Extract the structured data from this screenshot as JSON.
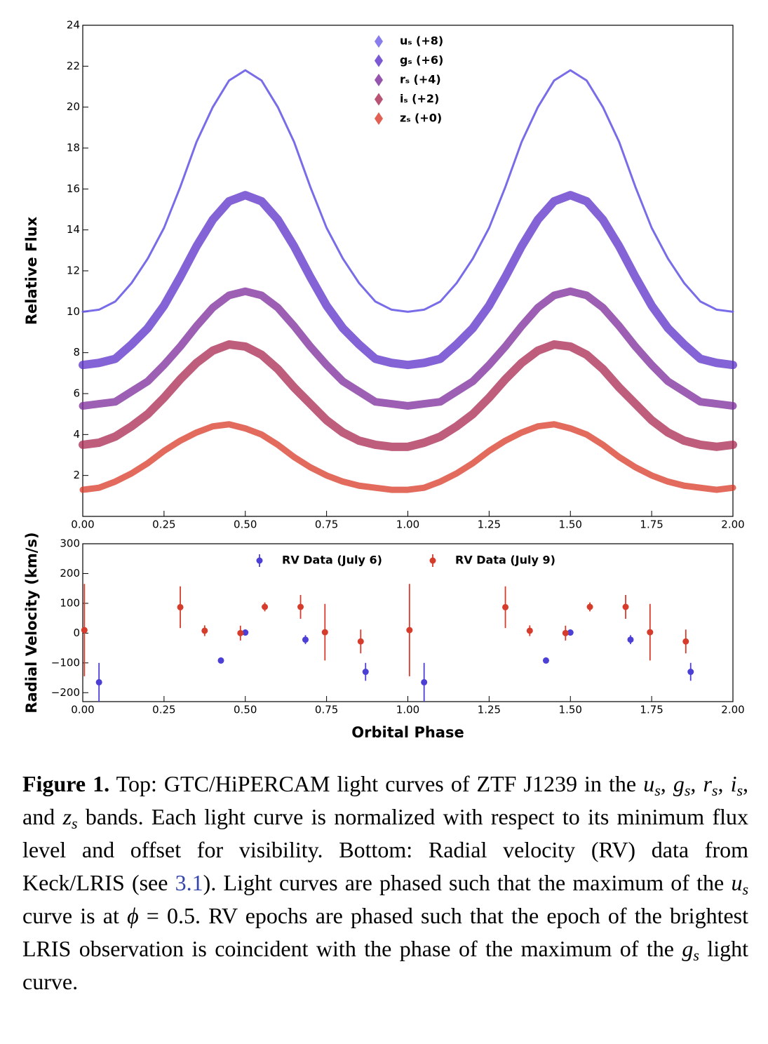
{
  "chart_data": [
    {
      "type": "line",
      "y_label": "Relative Flux",
      "legend": "upper center",
      "xlim": [
        0,
        2
      ],
      "ylim": [
        0,
        24
      ],
      "xticks": [
        {
          "value": 0,
          "label": "0.00"
        },
        {
          "value": 0.25,
          "label": "0.25"
        },
        {
          "value": 0.5,
          "label": "0.50"
        },
        {
          "value": 0.75,
          "label": "0.75"
        },
        {
          "value": 1,
          "label": "1.00"
        },
        {
          "value": 1.25,
          "label": "1.25"
        },
        {
          "value": 1.5,
          "label": "1.50"
        },
        {
          "value": 1.75,
          "label": "1.75"
        },
        {
          "value": 2,
          "label": "2.00"
        }
      ],
      "yticks": [
        2,
        4,
        6,
        8,
        10,
        12,
        14,
        16,
        18,
        20,
        22,
        24
      ],
      "x": [
        0,
        0.05,
        0.1,
        0.15,
        0.2,
        0.25,
        0.3,
        0.35,
        0.4,
        0.45,
        0.5,
        0.55,
        0.6,
        0.65,
        0.7,
        0.75,
        0.8,
        0.85,
        0.9,
        0.95,
        1,
        1.05,
        1.1,
        1.15,
        1.2,
        1.25,
        1.3,
        1.35,
        1.4,
        1.45,
        1.5,
        1.55,
        1.6,
        1.65,
        1.7,
        1.75,
        1.8,
        1.85,
        1.9,
        1.95,
        2
      ],
      "series": [
        {
          "name": "uₛ (+8)",
          "color": "#6a5ce6",
          "values": [
            10.0,
            10.1,
            10.5,
            11.4,
            12.6,
            14.1,
            16.1,
            18.3,
            20.0,
            21.3,
            21.8,
            21.3,
            20.0,
            18.3,
            16.1,
            14.1,
            12.6,
            11.4,
            10.5,
            10.1,
            10.0,
            10.1,
            10.5,
            11.4,
            12.6,
            14.1,
            16.1,
            18.3,
            20.0,
            21.3,
            21.8,
            21.3,
            20.0,
            18.3,
            16.1,
            14.1,
            12.6,
            11.4,
            10.5,
            10.1,
            10.0
          ]
        },
        {
          "name": "gₛ (+6)",
          "color": "#5a2fc8",
          "values": [
            7.4,
            7.5,
            7.7,
            8.4,
            9.2,
            10.3,
            11.7,
            13.2,
            14.5,
            15.4,
            15.7,
            15.4,
            14.5,
            13.2,
            11.7,
            10.3,
            9.2,
            8.4,
            7.7,
            7.5,
            7.4,
            7.5,
            7.7,
            8.4,
            9.2,
            10.3,
            11.7,
            13.2,
            14.5,
            15.4,
            15.7,
            15.4,
            14.5,
            13.2,
            11.7,
            10.3,
            9.2,
            8.4,
            7.7,
            7.5,
            7.4
          ]
        },
        {
          "name": "rₛ (+4)",
          "color": "#7b2a9a",
          "values": [
            5.4,
            5.5,
            5.6,
            6.1,
            6.6,
            7.4,
            8.3,
            9.3,
            10.2,
            10.8,
            11.0,
            10.8,
            10.2,
            9.3,
            8.3,
            7.4,
            6.6,
            6.1,
            5.6,
            5.5,
            5.4,
            5.5,
            5.6,
            6.1,
            6.6,
            7.4,
            8.3,
            9.3,
            10.2,
            10.8,
            11.0,
            10.8,
            10.2,
            9.3,
            8.3,
            7.4,
            6.6,
            6.1,
            5.6,
            5.5,
            5.4
          ]
        },
        {
          "name": "iₛ (+2)",
          "color": "#a82850",
          "values": [
            3.5,
            3.6,
            3.9,
            4.4,
            5.0,
            5.8,
            6.7,
            7.5,
            8.1,
            8.4,
            8.3,
            7.9,
            7.2,
            6.3,
            5.5,
            4.7,
            4.1,
            3.7,
            3.5,
            3.4,
            3.4,
            3.6,
            3.9,
            4.4,
            5.0,
            5.8,
            6.7,
            7.5,
            8.1,
            8.4,
            8.3,
            7.9,
            7.2,
            6.3,
            5.5,
            4.7,
            4.1,
            3.7,
            3.5,
            3.4,
            3.5
          ]
        },
        {
          "name": "zₛ (+0)",
          "color": "#d83a28",
          "values": [
            1.3,
            1.4,
            1.7,
            2.1,
            2.6,
            3.2,
            3.7,
            4.1,
            4.4,
            4.5,
            4.3,
            4.0,
            3.5,
            2.9,
            2.4,
            2.0,
            1.7,
            1.5,
            1.4,
            1.3,
            1.3,
            1.4,
            1.7,
            2.1,
            2.6,
            3.2,
            3.7,
            4.1,
            4.4,
            4.5,
            4.3,
            4.0,
            3.5,
            2.9,
            2.4,
            2.0,
            1.7,
            1.5,
            1.4,
            1.3,
            1.4
          ]
        }
      ]
    },
    {
      "type": "errorbar",
      "x_label": "Orbital Phase",
      "y_label": "Radial Velocity (km/s)",
      "legend": "upper center",
      "xlim": [
        0,
        2
      ],
      "ylim": [
        -230,
        300
      ],
      "xticks": [
        {
          "value": 0,
          "label": "0.00"
        },
        {
          "value": 0.25,
          "label": "0.25"
        },
        {
          "value": 0.5,
          "label": "0.50"
        },
        {
          "value": 0.75,
          "label": "0.75"
        },
        {
          "value": 1,
          "label": "1.00"
        },
        {
          "value": 1.25,
          "label": "1.25"
        },
        {
          "value": 1.5,
          "label": "1.50"
        },
        {
          "value": 1.75,
          "label": "1.75"
        },
        {
          "value": 2,
          "label": "2.00"
        }
      ],
      "yticks": [
        {
          "value": -200,
          "label": "−200"
        },
        {
          "value": -100,
          "label": "−100"
        },
        0,
        100,
        200,
        300
      ],
      "series": [
        {
          "name": "RV Data (July 6)",
          "color": "#4b3fd6",
          "x": [
            0.05,
            0.425,
            0.5,
            0.685,
            0.87,
            1.05,
            1.425,
            1.5,
            1.685,
            1.87
          ],
          "values": [
            -165,
            -92,
            2,
            -22,
            -130,
            -165,
            -92,
            2,
            -22,
            -130
          ],
          "errors": [
            65,
            10,
            10,
            15,
            30,
            65,
            10,
            10,
            15,
            30
          ]
        },
        {
          "name": "RV Data (July 9)",
          "color": "#d63c2c",
          "x": [
            0.005,
            0.3,
            0.375,
            0.485,
            0.56,
            0.67,
            0.745,
            0.855,
            1.005,
            1.3,
            1.375,
            1.485,
            1.56,
            1.67,
            1.745,
            1.855
          ],
          "values": [
            10,
            87,
            8,
            0,
            88,
            88,
            3,
            -28,
            10,
            87,
            8,
            0,
            88,
            88,
            3,
            -28
          ],
          "errors": [
            155,
            70,
            18,
            25,
            15,
            40,
            95,
            40,
            155,
            70,
            18,
            25,
            15,
            40,
            95,
            40
          ]
        }
      ]
    }
  ],
  "caption": {
    "parts": [
      "Figure 1.",
      "  Top:  GTC/HiPERCAM light curves of ZTF J1239 in the ",
      "u",
      "s",
      ", ",
      "g",
      "s",
      ", ",
      "r",
      "s",
      ", ",
      "i",
      "s",
      ", and ",
      "z",
      "s",
      " bands.  Each light curve is normalized with respect to its minimum flux level and offset for visibility.  Bottom: Radial velocity (RV) data from Keck/LRIS (see ",
      "3.1",
      ").  Light curves are phased such that the maximum of the ",
      "u",
      "s",
      " curve is at ",
      "ϕ",
      " = 0.5. RV epochs are phased such that the epoch of the brightest LRIS observation is coincident with the phase of the maximum of the ",
      "g",
      "s",
      " light curve."
    ]
  }
}
